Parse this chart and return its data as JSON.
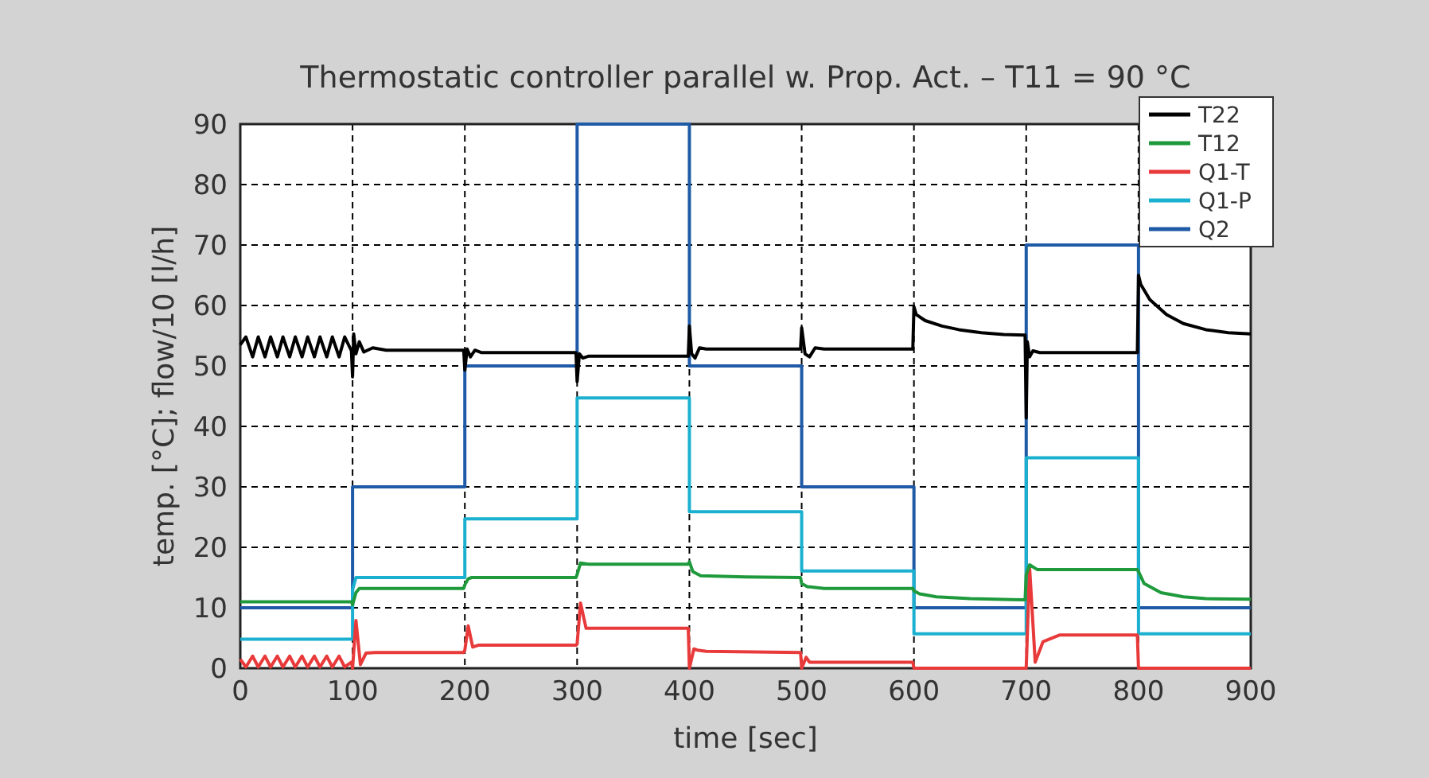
{
  "chart_data": {
    "type": "line",
    "title": "Thermostatic controller parallel w. Prop. Act. – T11 = 90 °C",
    "xlabel": "time [sec]",
    "ylabel": "temp. [°C]; flow/10 [l/h]",
    "xlim": [
      0,
      900
    ],
    "ylim": [
      0,
      90
    ],
    "xticks": [
      0,
      100,
      200,
      300,
      400,
      500,
      600,
      700,
      800,
      900
    ],
    "yticks": [
      0,
      10,
      20,
      30,
      40,
      50,
      60,
      70,
      80,
      90
    ],
    "grid": true,
    "legend": "top right",
    "line_style": "solid",
    "marker": "none",
    "series": [
      {
        "name": "T22",
        "color": "#000000",
        "x": [
          0,
          5,
          11,
          16,
          22,
          27,
          33,
          38,
          44,
          49,
          55,
          60,
          66,
          71,
          77,
          82,
          88,
          93,
          99,
          100,
          101,
          103,
          106,
          110,
          118,
          130,
          150,
          199,
          200,
          202,
          205,
          209,
          215,
          230,
          299,
          300,
          302,
          305,
          310,
          320,
          399,
          400,
          402,
          405,
          409,
          415,
          430,
          499,
          500,
          503,
          507,
          512,
          520,
          540,
          599,
          600,
          602,
          610,
          625,
          640,
          660,
          680,
          699,
          700,
          701,
          703,
          706,
          712,
          730,
          799,
          800,
          802,
          810,
          825,
          840,
          860,
          880,
          900
        ],
        "values": [
          53.5,
          54.8,
          51.5,
          54.8,
          51.5,
          54.8,
          51.5,
          54.8,
          51.5,
          54.8,
          51.5,
          54.8,
          51.5,
          54.8,
          51.5,
          54.8,
          51.5,
          54.8,
          52.5,
          48.2,
          55.3,
          52,
          54,
          52.3,
          53,
          52.6,
          52.6,
          52.6,
          49.3,
          52.8,
          51.5,
          52.6,
          52.2,
          52.2,
          52.2,
          47.4,
          52,
          51.3,
          51.6,
          51.6,
          51.6,
          56.6,
          52,
          51.3,
          53,
          52.8,
          52.8,
          52.8,
          56.3,
          52,
          51.5,
          53,
          52.8,
          52.8,
          52.8,
          59.8,
          58.5,
          57.5,
          56.6,
          56,
          55.5,
          55.2,
          55.1,
          41.4,
          54,
          51.5,
          52.5,
          52.2,
          52.2,
          52.2,
          65,
          63.5,
          61,
          58.5,
          57,
          56,
          55.5,
          55.3
        ]
      },
      {
        "name": "T12",
        "color": "#1e9a3c",
        "x": [
          0,
          99,
          100,
          103,
          106,
          120,
          199,
          200,
          203,
          206,
          220,
          299,
          300,
          303,
          310,
          399,
          400,
          403,
          410,
          450,
          499,
          500,
          505,
          520,
          599,
          600,
          605,
          620,
          650,
          699,
          700,
          703,
          710,
          799,
          800,
          805,
          820,
          840,
          860,
          900
        ],
        "values": [
          11,
          11,
          10.5,
          12.5,
          13.2,
          13.2,
          13.2,
          13.8,
          14.8,
          15,
          15,
          15,
          15.5,
          17.4,
          17.2,
          17.2,
          17.6,
          16,
          15.3,
          15.1,
          15,
          14,
          13.5,
          13.2,
          13.2,
          12.8,
          12.3,
          11.8,
          11.5,
          11.3,
          15.5,
          17.1,
          16.3,
          16.3,
          16,
          14,
          12.5,
          11.8,
          11.5,
          11.4
        ]
      },
      {
        "name": "Q1-T",
        "color": "#e83a3a",
        "x": [
          0,
          5,
          11,
          16,
          22,
          27,
          33,
          38,
          44,
          49,
          55,
          60,
          66,
          71,
          77,
          82,
          88,
          93,
          99,
          100,
          103,
          107,
          112,
          120,
          199,
          200,
          203,
          207,
          212,
          299,
          300,
          303,
          308,
          399,
          400,
          404,
          407,
          415,
          499,
          500,
          504,
          507,
          515,
          599,
          600,
          699,
          700,
          703,
          708,
          715,
          730,
          799,
          800,
          900
        ],
        "values": [
          1.5,
          0.2,
          2,
          0.2,
          2,
          0.2,
          2,
          0.2,
          2,
          0.2,
          2,
          0.2,
          2,
          0.2,
          2,
          0.2,
          2,
          0.2,
          1,
          0,
          7.9,
          0.6,
          2.5,
          2.6,
          2.6,
          3,
          7,
          3.5,
          3.8,
          3.8,
          4,
          10.8,
          6.6,
          6.6,
          0,
          3.2,
          3,
          2.8,
          2.6,
          0,
          1.8,
          1,
          1,
          1,
          0,
          0,
          0,
          16.7,
          1,
          4.4,
          5.5,
          5.5,
          0,
          0
        ]
      },
      {
        "name": "Q1-P",
        "color": "#1bb0cf",
        "x": [
          0,
          100,
          100,
          103,
          200,
          200,
          300,
          300,
          400,
          400,
          500,
          500,
          600,
          600,
          700,
          700,
          800,
          800,
          900
        ],
        "values": [
          4.8,
          4.8,
          13,
          15,
          15,
          24.7,
          24.7,
          44.7,
          44.7,
          25.9,
          25.9,
          16.1,
          16.1,
          5.7,
          5.7,
          34.8,
          34.8,
          5.7,
          5.7
        ]
      },
      {
        "name": "Q2",
        "color": "#1f5aa6",
        "x": [
          0,
          100,
          100,
          200,
          200,
          300,
          300,
          400,
          400,
          500,
          500,
          600,
          600,
          700,
          700,
          800,
          800,
          900
        ],
        "values": [
          10,
          10,
          30,
          30,
          50,
          50,
          90,
          90,
          50,
          50,
          30,
          30,
          10,
          10,
          70,
          70,
          10,
          10
        ]
      }
    ]
  }
}
